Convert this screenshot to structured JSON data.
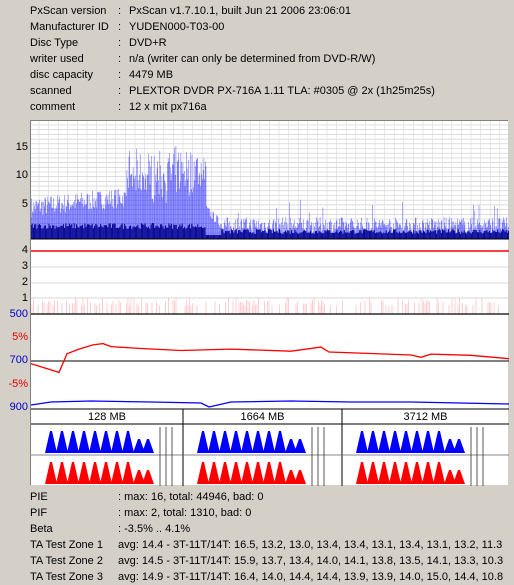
{
  "info": [
    {
      "key": "PxScan version",
      "value": "PxScan v1.7.10.1, built Jun 21 2006 23:06:01"
    },
    {
      "key": "Manufacturer ID",
      "value": "YUDEN000-T03-00"
    },
    {
      "key": "Disc Type",
      "value": "DVD+R"
    },
    {
      "key": "writer used",
      "value": "n/a (writer can only be determined from DVD-R/W)"
    },
    {
      "key": "disc capacity",
      "value": "4479 MB"
    },
    {
      "key": "scanned",
      "value": "PLEXTOR DVDR PX-716A 1.11 TLA: #0305 @ 2x (1h25m25s)"
    },
    {
      "key": "comment",
      "value": "12 x mit px716a"
    }
  ],
  "pie_axis": [
    "15",
    "10",
    "5"
  ],
  "pif_axis": [
    "4",
    "3",
    "2",
    "1"
  ],
  "jitter_axis": {
    "top": "500",
    "plus": "5%",
    "mid": "700",
    "minus": "-5%",
    "bottom": "900"
  },
  "zones": [
    "128 MB",
    "1664 MB",
    "3712 MB"
  ],
  "stats": [
    {
      "key": "PIE",
      "value": ": max: 16, total: 44946, bad: 0"
    },
    {
      "key": "PIF",
      "value": ": max: 2, total: 1310, bad: 0"
    },
    {
      "key": "Beta",
      "value": ": -3.5% .. 4.1%"
    },
    {
      "key": "TA Test Zone 1",
      "value": "avg: 14.4 - 3T-11T/14T: 16.5, 13.2, 13.0, 13.4, 13.4, 13.1, 13.4, 13.1, 13.2, 11.3"
    },
    {
      "key": "TA Test Zone 2",
      "value": "avg: 14.5 - 3T-11T/14T: 15.9, 13.7, 13.4, 14.0, 14.1, 13.8, 13.5, 14.1, 13.3, 10.3"
    },
    {
      "key": "TA Test Zone 3",
      "value": "avg: 14.9 - 3T-11T/14T: 16.4, 14.0, 14.4, 14.4, 13.9, 13.9, 14.0, 15.0, 14.4, 10.8"
    }
  ],
  "colors": {
    "pie": "#0000ff",
    "pif": "#ff0000",
    "beta": "#ff0000",
    "jitter": "#0000ff"
  }
}
